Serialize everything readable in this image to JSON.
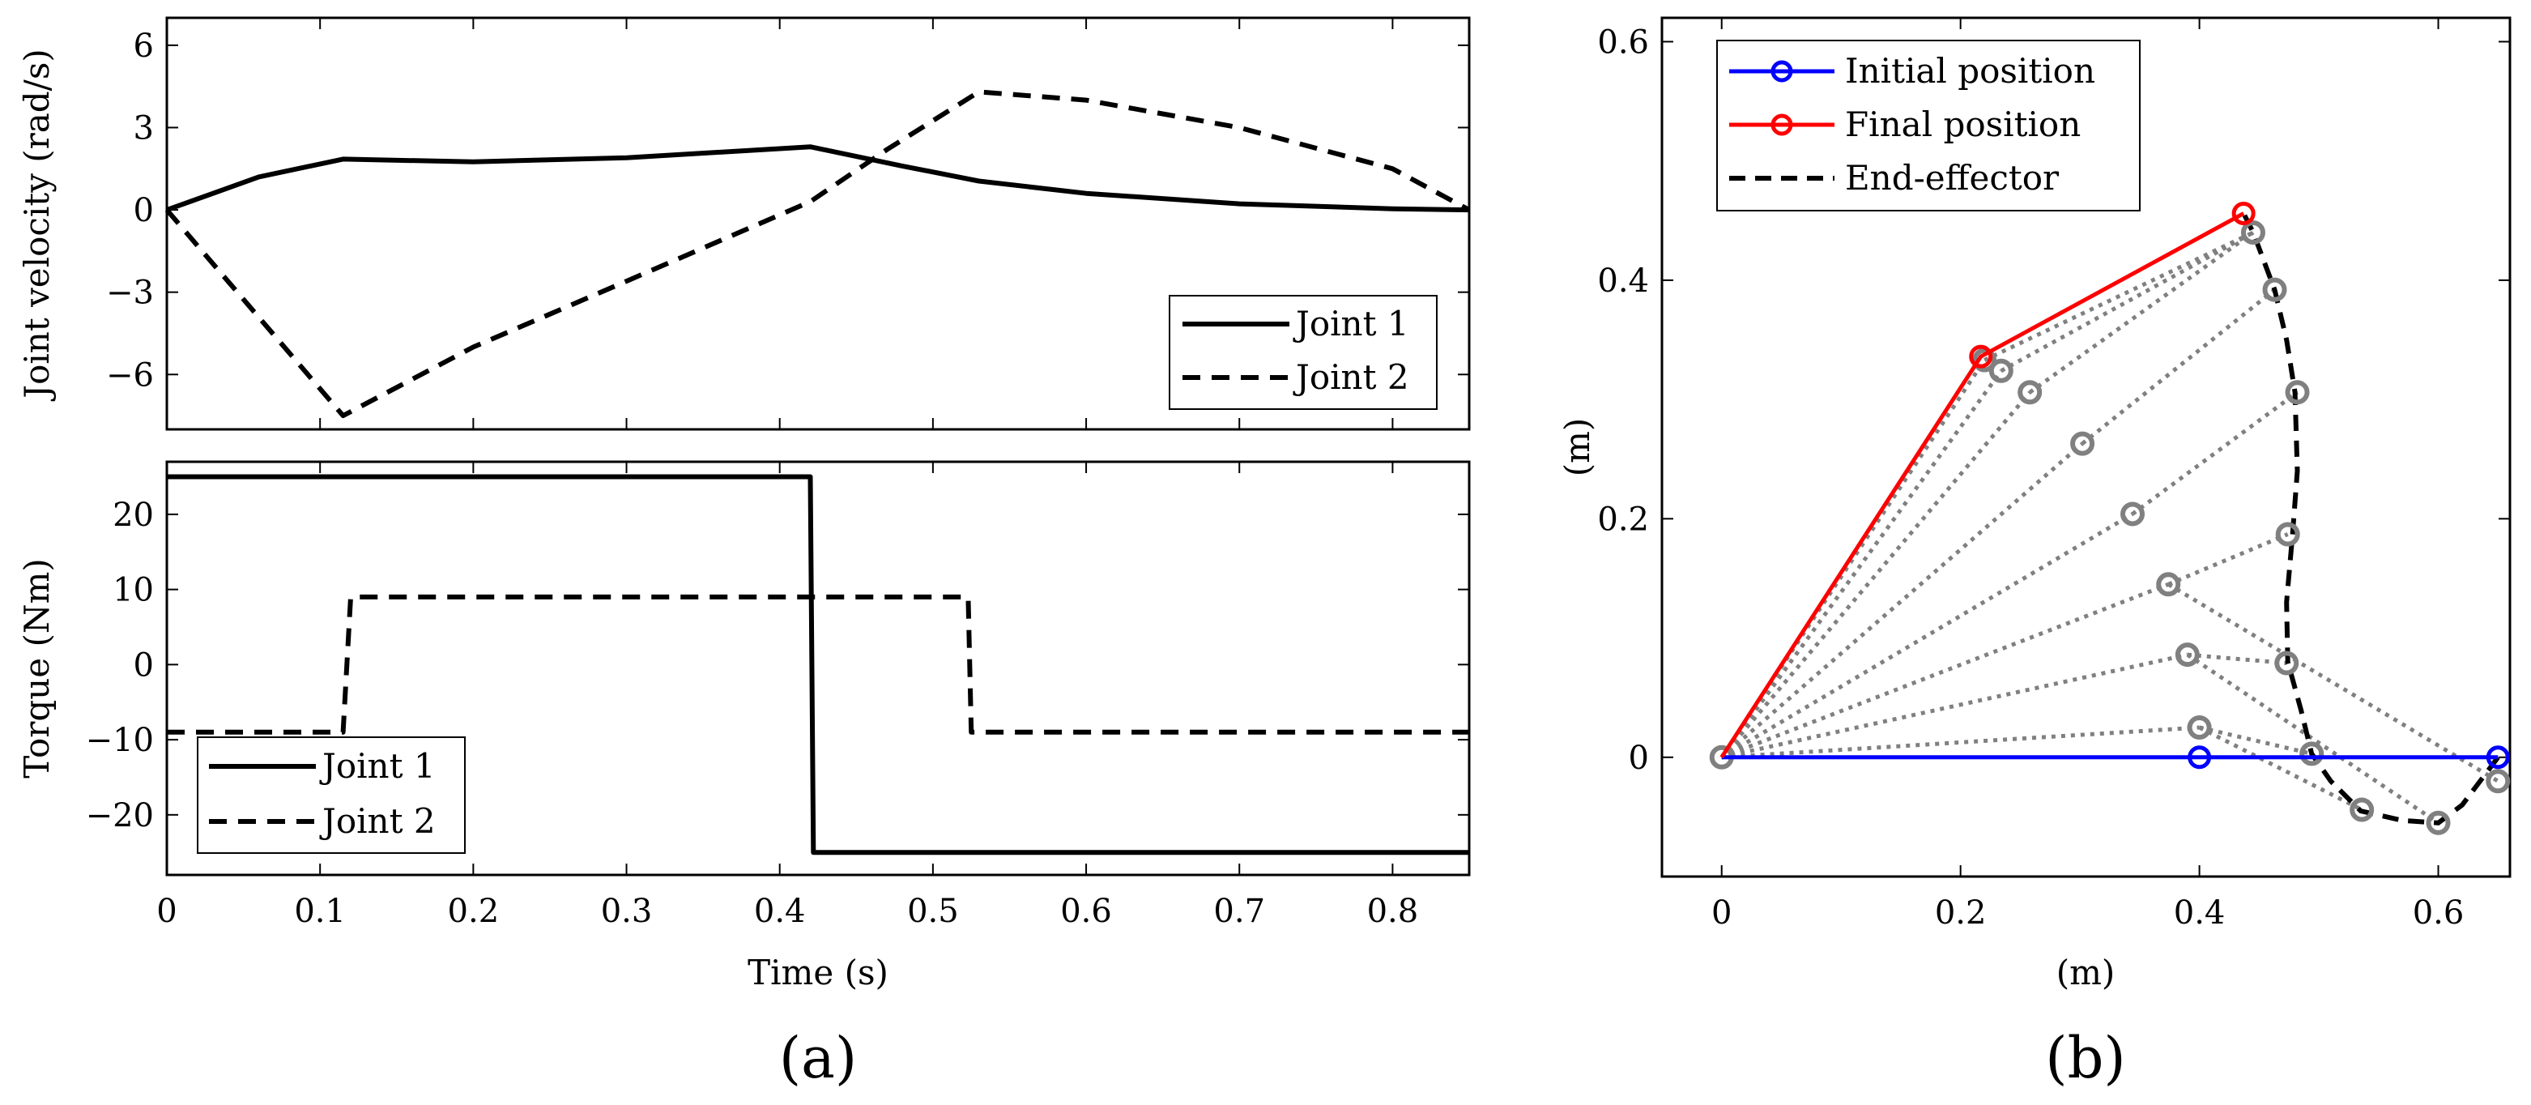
{
  "colors": {
    "initial": "#0000ff",
    "final": "#ff0000",
    "trace": "#000000",
    "links": "#808080",
    "solid": "#000000"
  },
  "panel_labels": {
    "a": "(a)",
    "b": "(b)"
  },
  "chart_data": [
    {
      "id": "velocity",
      "type": "line",
      "title": "",
      "xlabel": "",
      "ylabel": "Joint velocity (rad/s)",
      "xlim": [
        0,
        0.85
      ],
      "ylim": [
        -8,
        7
      ],
      "yticks": [
        -6,
        -3,
        0,
        3,
        6
      ],
      "ytick_labels": [
        "−6",
        "−3",
        "0",
        "3",
        "6"
      ],
      "xticks": [
        0,
        0.1,
        0.2,
        0.3,
        0.4,
        0.5,
        0.6,
        0.7,
        0.8
      ],
      "legend": {
        "position": "bottom-right",
        "entries": [
          "Joint 1",
          "Joint 2"
        ]
      },
      "series": [
        {
          "name": "Joint 1",
          "style": "solid",
          "x": [
            0,
            0.06,
            0.115,
            0.2,
            0.3,
            0.42,
            0.48,
            0.53,
            0.6,
            0.7,
            0.8,
            0.85
          ],
          "y": [
            0,
            1.2,
            1.85,
            1.75,
            1.9,
            2.3,
            1.6,
            1.05,
            0.6,
            0.22,
            0.04,
            0
          ]
        },
        {
          "name": "Joint 2",
          "style": "dashed",
          "x": [
            0,
            0.115,
            0.2,
            0.3,
            0.42,
            0.47,
            0.53,
            0.6,
            0.7,
            0.8,
            0.85
          ],
          "y": [
            0,
            -7.5,
            -5.0,
            -2.6,
            0.3,
            2.2,
            4.3,
            4.0,
            3.0,
            1.5,
            0
          ]
        }
      ]
    },
    {
      "id": "torque",
      "type": "line",
      "title": "",
      "xlabel": "Time (s)",
      "ylabel": "Torque (Nm)",
      "xlim": [
        0,
        0.85
      ],
      "ylim": [
        -28,
        27
      ],
      "yticks": [
        -20,
        -10,
        0,
        10,
        20
      ],
      "ytick_labels": [
        "−20",
        "−10",
        "0",
        "10",
        "20"
      ],
      "xticks": [
        0,
        0.1,
        0.2,
        0.3,
        0.4,
        0.5,
        0.6,
        0.7,
        0.8
      ],
      "xtick_labels": [
        "0",
        "0.1",
        "0.2",
        "0.3",
        "0.4",
        "0.5",
        "0.6",
        "0.7",
        "0.8"
      ],
      "legend": {
        "position": "bottom-left",
        "entries": [
          "Joint 1",
          "Joint 2"
        ]
      },
      "series": [
        {
          "name": "Joint 1",
          "style": "solid",
          "x": [
            0,
            0.42,
            0.422,
            0.85
          ],
          "y": [
            25,
            25,
            -25,
            -25
          ]
        },
        {
          "name": "Joint 2",
          "style": "dashed",
          "x": [
            0,
            0.115,
            0.12,
            0.523,
            0.525,
            0.85
          ],
          "y": [
            -9,
            -9,
            9,
            9,
            -9,
            -9
          ]
        }
      ]
    },
    {
      "id": "workspace",
      "type": "line",
      "title": "",
      "xlabel": "(m)",
      "ylabel": "(m)",
      "xlim": [
        -0.05,
        0.66
      ],
      "ylim": [
        -0.1,
        0.62
      ],
      "xticks": [
        0,
        0.2,
        0.4,
        0.6
      ],
      "xtick_labels": [
        "0",
        "0.2",
        "0.4",
        "0.6"
      ],
      "yticks": [
        0,
        0.2,
        0.4,
        0.6
      ],
      "ytick_labels": [
        "0",
        "0.2",
        "0.4",
        "0.6"
      ],
      "legend": {
        "position": "top-left",
        "entries": [
          "Initial position",
          "Final position",
          "End-effector"
        ]
      },
      "initial": {
        "x": [
          0,
          0.4,
          0.65
        ],
        "y": [
          0,
          0,
          0
        ]
      },
      "final": {
        "x": [
          0,
          0.217,
          0.437
        ],
        "y": [
          0,
          0.336,
          0.456
        ]
      },
      "end_effector": {
        "x": [
          0.65,
          0.62,
          0.6,
          0.57,
          0.535,
          0.51,
          0.494,
          0.485,
          0.474,
          0.473,
          0.478,
          0.482,
          0.48,
          0.473,
          0.463,
          0.445,
          0.437
        ],
        "y": [
          0,
          -0.04,
          -0.055,
          -0.053,
          -0.045,
          -0.02,
          0.003,
          0.04,
          0.08,
          0.13,
          0.187,
          0.24,
          0.306,
          0.35,
          0.392,
          0.44,
          0.456
        ]
      },
      "intermediate": {
        "elbow": [
          {
            "x": 0.4,
            "y": 0.025
          },
          {
            "x": 0.39,
            "y": 0.086
          },
          {
            "x": 0.374,
            "y": 0.145
          },
          {
            "x": 0.344,
            "y": 0.204
          },
          {
            "x": 0.302,
            "y": 0.263
          },
          {
            "x": 0.258,
            "y": 0.306
          },
          {
            "x": 0.234,
            "y": 0.324
          },
          {
            "x": 0.22,
            "y": 0.333
          }
        ],
        "tip": [
          {
            "x": 0.494,
            "y": 0.003
          },
          {
            "x": 0.473,
            "y": 0.079
          },
          {
            "x": 0.474,
            "y": 0.187
          },
          {
            "x": 0.482,
            "y": 0.306
          },
          {
            "x": 0.463,
            "y": 0.392
          },
          {
            "x": 0.445,
            "y": 0.44
          },
          {
            "x": 0.536,
            "y": -0.044
          },
          {
            "x": 0.6,
            "y": -0.055
          },
          {
            "x": 0.65,
            "y": -0.02
          }
        ]
      }
    }
  ]
}
